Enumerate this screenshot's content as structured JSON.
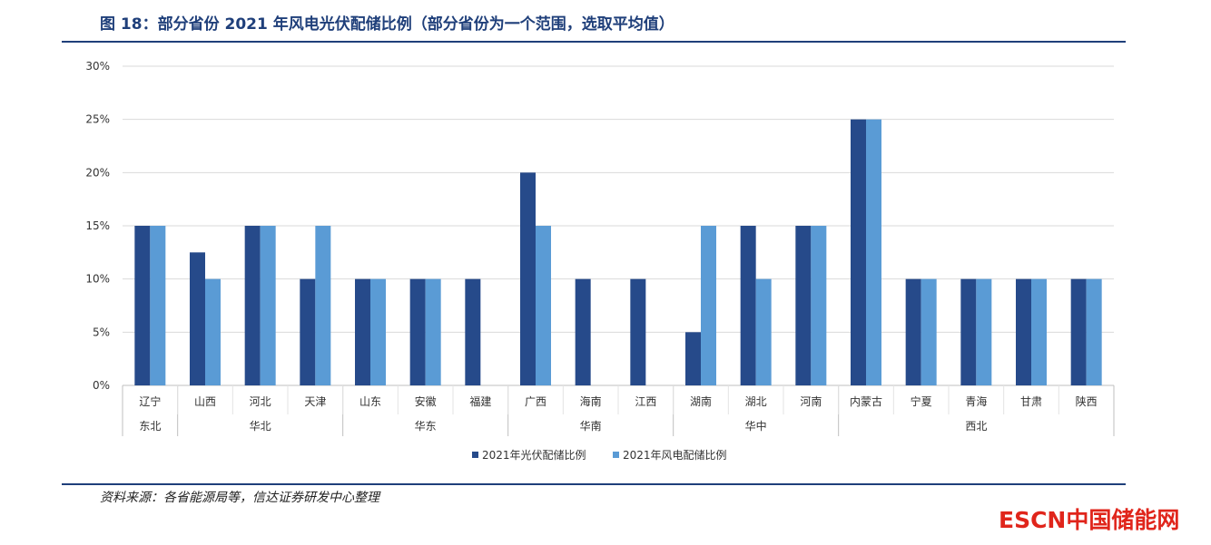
{
  "header": {
    "title": "图 18：部分省份 2021 年风电光伏配储比例（部分省份为一个范围，选取平均值）"
  },
  "footer": {
    "source": "资料来源：各省能源局等，信达证券研发中心整理",
    "watermark": "ESCN中国储能网"
  },
  "colors": {
    "series_pv": "#264a8a",
    "series_wind": "#5a9bd5",
    "title": "#1f3f7a",
    "watermark": "#e0251b"
  },
  "chart_data": {
    "type": "bar",
    "title": "",
    "xlabel": "",
    "ylabel": "",
    "ylim": [
      0,
      30
    ],
    "y_ticks": [
      "0%",
      "5%",
      "10%",
      "15%",
      "20%",
      "25%",
      "30%"
    ],
    "y_tick_values": [
      0,
      5,
      10,
      15,
      20,
      25,
      30
    ],
    "grid": true,
    "legend_position": "bottom",
    "categories": [
      "辽宁",
      "山西",
      "河北",
      "天津",
      "山东",
      "安徽",
      "福建",
      "广西",
      "海南",
      "江西",
      "湖南",
      "湖北",
      "河南",
      "内蒙古",
      "宁夏",
      "青海",
      "甘肃",
      "陕西"
    ],
    "regions": [
      {
        "name": "东北",
        "categories": [
          "辽宁"
        ]
      },
      {
        "name": "华北",
        "categories": [
          "山西",
          "河北",
          "天津"
        ]
      },
      {
        "name": "华东",
        "categories": [
          "山东",
          "安徽",
          "福建"
        ]
      },
      {
        "name": "华南",
        "categories": [
          "广西",
          "海南",
          "江西"
        ]
      },
      {
        "name": "华中",
        "categories": [
          "湖南",
          "湖北",
          "河南"
        ]
      },
      {
        "name": "西北",
        "categories": [
          "内蒙古",
          "宁夏",
          "青海",
          "甘肃",
          "陕西"
        ]
      }
    ],
    "series": [
      {
        "name": "2021年光伏配储比例",
        "values": [
          15,
          12.5,
          15,
          10,
          10,
          10,
          10,
          20,
          10,
          10,
          5,
          15,
          15,
          25,
          10,
          10,
          10,
          10
        ]
      },
      {
        "name": "2021年风电配储比例",
        "values": [
          15,
          10,
          15,
          15,
          10,
          10,
          0,
          15,
          0,
          0,
          15,
          10,
          15,
          25,
          10,
          10,
          10,
          10
        ]
      }
    ]
  }
}
